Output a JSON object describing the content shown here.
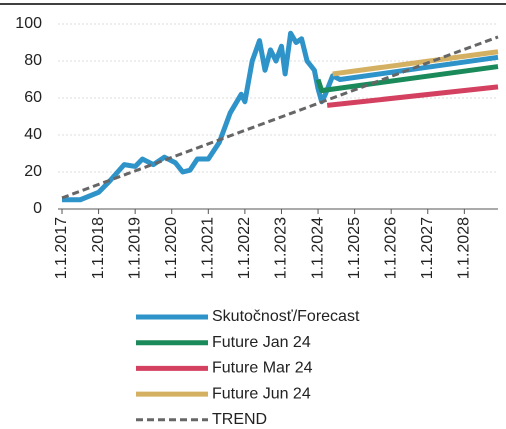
{
  "chart_data": {
    "type": "line",
    "ylim": [
      0,
      100
    ],
    "yticks": [
      0,
      20,
      40,
      60,
      80,
      100
    ],
    "xlim": [
      2017,
      2028.92
    ],
    "xticks": [
      {
        "value": 2017,
        "label": "1.1.2017"
      },
      {
        "value": 2018,
        "label": "1.1.2018"
      },
      {
        "value": 2019,
        "label": "1.1.2019"
      },
      {
        "value": 2020,
        "label": "1.1.2020"
      },
      {
        "value": 2021,
        "label": "1.1.2021"
      },
      {
        "value": 2022,
        "label": "1.1.2022"
      },
      {
        "value": 2023,
        "label": "1.1.2023"
      },
      {
        "value": 2024,
        "label": "1.1.2024"
      },
      {
        "value": 2025,
        "label": "1.1.2025"
      },
      {
        "value": 2026,
        "label": "1.1.2026"
      },
      {
        "value": 2027,
        "label": "1.1.2027"
      },
      {
        "value": 2028,
        "label": "1.1.2028"
      }
    ],
    "grid": true,
    "series": [
      {
        "name": "Skutočnosť/Forecast",
        "color": "#2e93c9",
        "style": "solid",
        "x": [
          2017,
          2017.5,
          2018,
          2018.3,
          2018.7,
          2019,
          2019.2,
          2019.5,
          2019.8,
          2020.1,
          2020.3,
          2020.5,
          2020.7,
          2021,
          2021.3,
          2021.6,
          2021.9,
          2022,
          2022.2,
          2022.4,
          2022.55,
          2022.7,
          2022.85,
          2023,
          2023.1,
          2023.25,
          2023.4,
          2023.55,
          2023.7,
          2023.9,
          2024,
          2024.1,
          2024.2,
          2024.4,
          2024.6,
          2028.92
        ],
        "values": [
          5,
          5,
          9,
          15,
          24,
          23,
          27,
          24,
          28,
          25,
          20,
          21,
          27,
          27,
          36,
          52,
          62,
          58,
          80,
          91,
          75,
          86,
          80,
          88,
          73,
          95,
          90,
          92,
          80,
          75,
          65,
          58,
          62,
          72,
          70,
          82
        ]
      },
      {
        "name": "Future Jan 24",
        "color": "#1a8a5a",
        "style": "solid",
        "x": [
          2024,
          2024.1,
          2028.92
        ],
        "values": [
          70,
          64,
          77
        ]
      },
      {
        "name": "Future Mar 24",
        "color": "#d4405f",
        "style": "solid",
        "x": [
          2024.25,
          2028.92
        ],
        "values": [
          56,
          66
        ]
      },
      {
        "name": "Future Jun 24",
        "color": "#d4b062",
        "style": "solid",
        "x": [
          2024.4,
          2028.92
        ],
        "values": [
          73,
          85
        ]
      },
      {
        "name": "TREND",
        "color": "#666666",
        "style": "dashed",
        "x": [
          2017,
          2028.92
        ],
        "values": [
          6,
          93
        ]
      }
    ]
  }
}
